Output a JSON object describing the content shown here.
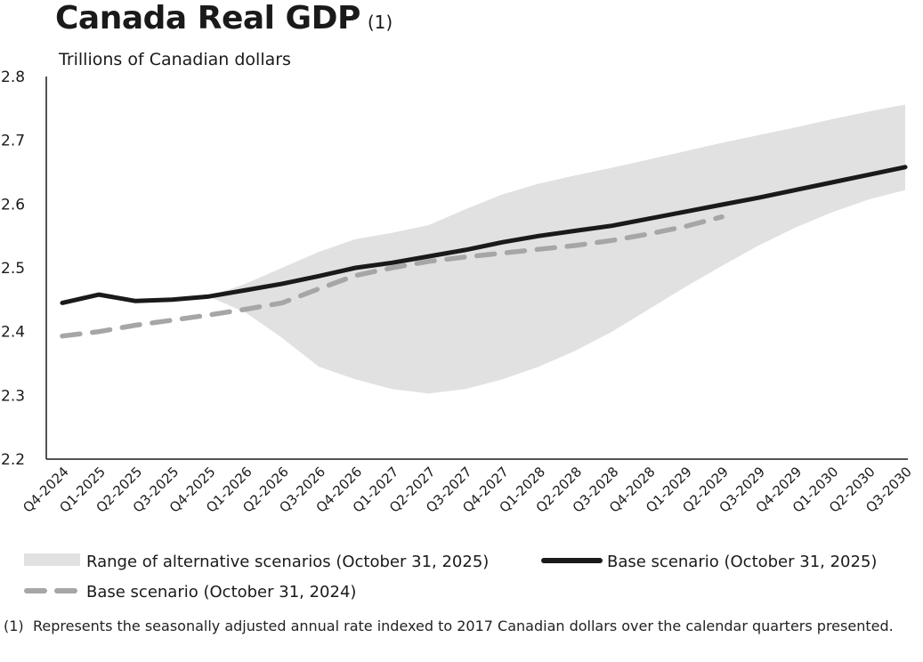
{
  "title": {
    "main": "Canada Real GDP",
    "note_marker": "(1)"
  },
  "chart_data": {
    "type": "line",
    "title": "Canada Real GDP",
    "ylabel": "Trillions of Canadian dollars",
    "xlabel": "",
    "ylim": [
      2.2,
      2.8
    ],
    "yticks": [
      "2.2",
      "2.3",
      "2.4",
      "2.5",
      "2.6",
      "2.7",
      "2.8"
    ],
    "grid": false,
    "categories": [
      "Q4-2024",
      "Q1-2025",
      "Q2-2025",
      "Q3-2025",
      "Q4-2025",
      "Q1-2026",
      "Q2-2026",
      "Q3-2026",
      "Q4-2026",
      "Q1-2027",
      "Q2-2027",
      "Q3-2027",
      "Q4-2027",
      "Q1-2028",
      "Q2-2028",
      "Q3-2028",
      "Q4-2028",
      "Q1-2029",
      "Q2-2029",
      "Q3-2029",
      "Q4-2029",
      "Q1-2030",
      "Q2-2030",
      "Q3-2030"
    ],
    "series": [
      {
        "name": "Base scenario (October 31, 2025)",
        "style": "solid",
        "color": "#1a1a1a",
        "values": [
          2.445,
          2.458,
          2.448,
          2.45,
          2.455,
          2.465,
          2.475,
          2.487,
          2.5,
          2.508,
          2.518,
          2.528,
          2.54,
          2.55,
          2.558,
          2.566,
          2.577,
          2.588,
          2.599,
          2.61,
          2.622,
          2.634,
          2.646,
          2.658
        ]
      },
      {
        "name": "Base scenario (October 31, 2024)",
        "style": "dashed",
        "color": "#a6a6a6",
        "values": [
          2.393,
          2.4,
          2.41,
          2.418,
          2.426,
          2.435,
          2.445,
          2.467,
          2.488,
          2.5,
          2.51,
          2.517,
          2.523,
          2.529,
          2.535,
          2.543,
          2.553,
          2.565,
          2.58,
          null,
          null,
          null,
          null,
          null
        ]
      }
    ],
    "range": {
      "name": "Range of alternative scenarios (October 31, 2025)",
      "color": "#e1e1e1",
      "start_index": 4,
      "upper": [
        2.455,
        2.475,
        2.5,
        2.525,
        2.545,
        2.555,
        2.567,
        2.592,
        2.615,
        2.632,
        2.645,
        2.657,
        2.67,
        2.683,
        2.696,
        2.708,
        2.72,
        2.733,
        2.745,
        2.756
      ],
      "lower": [
        2.455,
        2.43,
        2.39,
        2.345,
        2.325,
        2.31,
        2.303,
        2.31,
        2.325,
        2.345,
        2.37,
        2.4,
        2.435,
        2.47,
        2.503,
        2.535,
        2.563,
        2.587,
        2.607,
        2.622
      ]
    },
    "legend": [
      {
        "label": "Range of alternative scenarios (October 31, 2025)",
        "kind": "range"
      },
      {
        "label": "Base scenario (October 31, 2025)",
        "kind": "solid"
      },
      {
        "label": "Base scenario (October 31, 2024)",
        "kind": "dashed"
      }
    ],
    "legend_position": "bottom"
  },
  "footnote": {
    "marker": "(1)",
    "text": "Represents the seasonally adjusted annual rate indexed to 2017 Canadian dollars over the calendar quarters presented."
  }
}
